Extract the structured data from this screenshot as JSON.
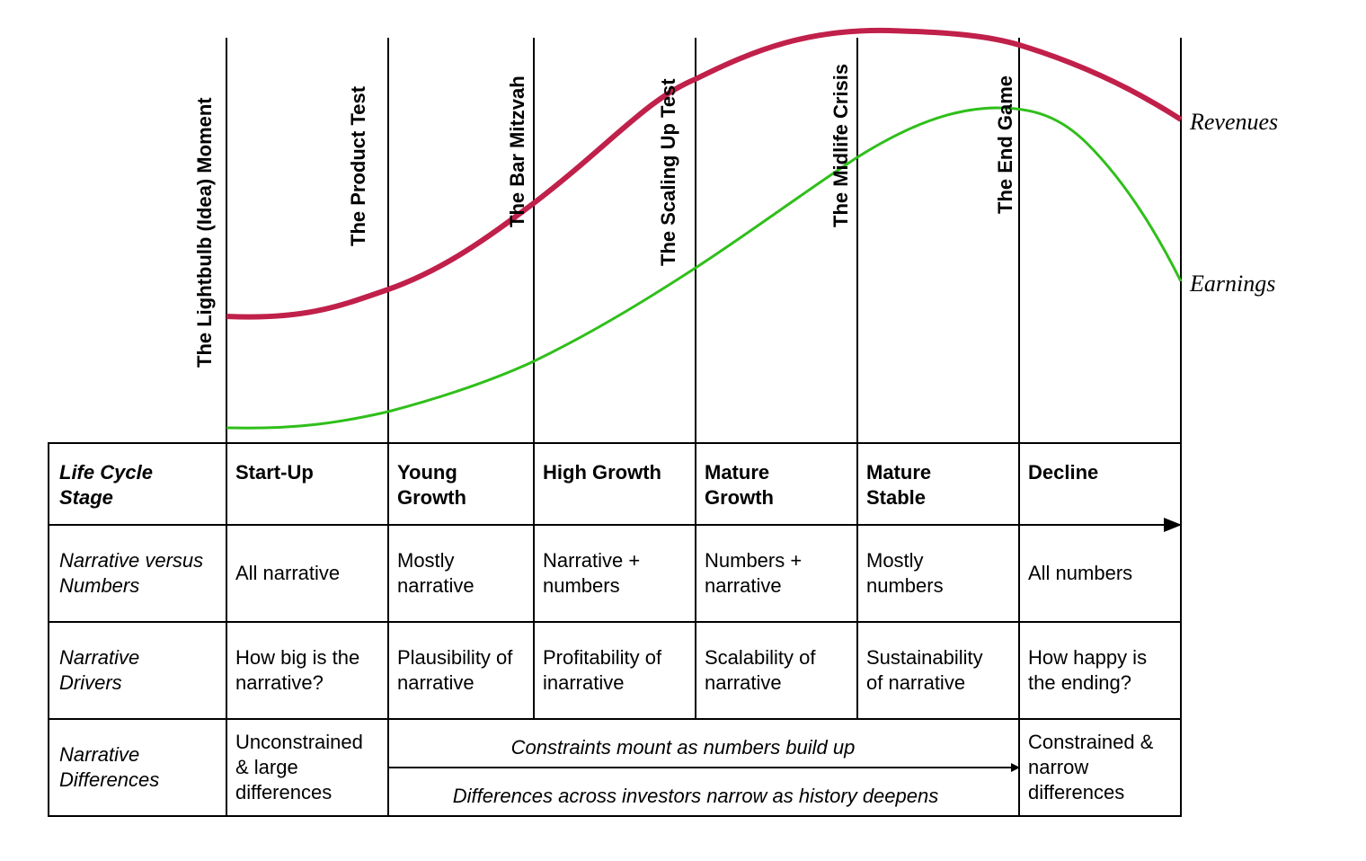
{
  "milestones": [
    "The Lightbulb (Idea) Moment",
    "The Product Test",
    "The Bar Mitzvah",
    "The Scaling Up Test",
    "The Midlife Crisis",
    "The End Game"
  ],
  "curves": {
    "revenues": {
      "label": "Revenues",
      "color": "#c0204a"
    },
    "earnings": {
      "label": "Earnings",
      "color": "#2fbf1a"
    }
  },
  "table": {
    "row_headers": [
      [
        "Life Cycle",
        "Stage"
      ],
      [
        "Narrative versus",
        "Numbers"
      ],
      [
        "Narrative",
        "Drivers"
      ],
      [
        "Narrative",
        "Differences"
      ]
    ],
    "stages": [
      [
        "Start-Up"
      ],
      [
        "Young",
        "Growth"
      ],
      [
        "High Growth"
      ],
      [
        "Mature",
        "Growth"
      ],
      [
        "Mature",
        "Stable"
      ],
      [
        "Decline"
      ]
    ],
    "narrative_vs_numbers": [
      [
        "All narrative"
      ],
      [
        "Mostly",
        "narrative"
      ],
      [
        "Narrative +",
        "numbers"
      ],
      [
        "Numbers +",
        "narrative"
      ],
      [
        "Mostly",
        "numbers"
      ],
      [
        "All numbers"
      ]
    ],
    "narrative_drivers": [
      [
        "How big is the",
        "narrative?"
      ],
      [
        "Plausibility of",
        "narrative"
      ],
      [
        "Profitability of",
        "inarrative"
      ],
      [
        "Scalability of",
        "narrative"
      ],
      [
        "Sustainability",
        "of narrative"
      ],
      [
        "How happy is",
        "the ending?"
      ]
    ],
    "differences": {
      "start": [
        "Unconstrained",
        "& large",
        "differences"
      ],
      "middle_top": "Constraints mount as numbers build up",
      "middle_bottom": "Differences across investors narrow as history deepens",
      "end": [
        "Constrained &",
        "narrow",
        "differences"
      ]
    }
  }
}
